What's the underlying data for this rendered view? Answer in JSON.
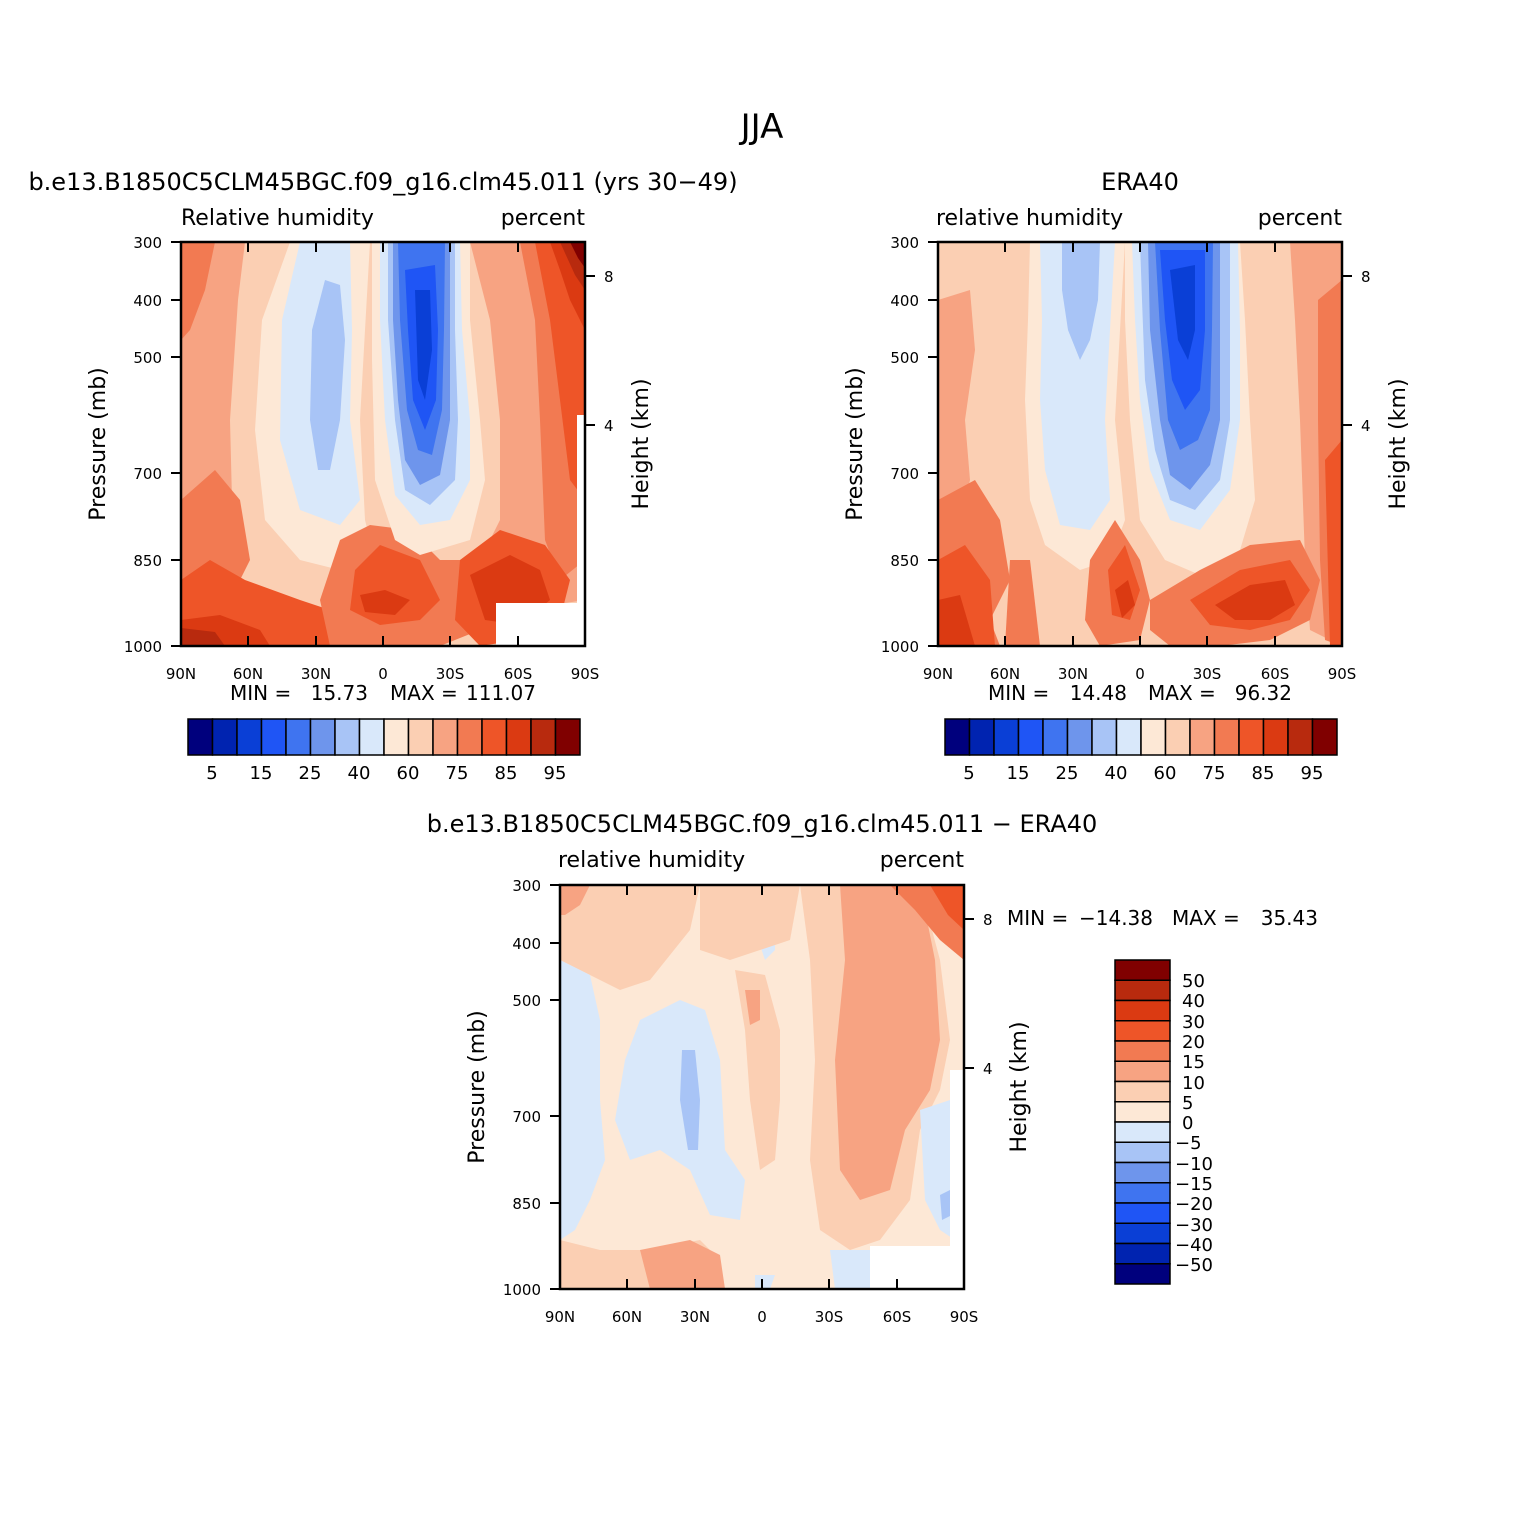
{
  "figure": {
    "title": "JJA"
  },
  "colors": {
    "rh_palette": [
      "#00007d",
      "#0023b0",
      "#0a3fd6",
      "#1f55f5",
      "#3f74f0",
      "#6e95ec",
      "#a8c4f6",
      "#d9e8fa",
      "#fde8d6",
      "#fbcfb3",
      "#f7a382",
      "#f27a52",
      "#ee5528",
      "#db3a12",
      "#b82a0e",
      "#800000"
    ],
    "diff_palette": [
      "#00007d",
      "#0023b0",
      "#0a3fd6",
      "#1f55f5",
      "#3f74f0",
      "#6e95ec",
      "#a8c4f6",
      "#d9e8fa",
      "#fde8d6",
      "#fbcfb3",
      "#f7a382",
      "#f27a52",
      "#ee5528",
      "#db3a12",
      "#b82a0e",
      "#800000"
    ]
  },
  "panels": [
    {
      "id": "model",
      "title": "b.e13.B1850C5CLM45BGC.f09_g16.clm45.011 (yrs 30−49)",
      "left_label": "Relative humidity",
      "right_label": "percent",
      "min_label": "MIN =",
      "min_value": "15.73",
      "max_label": "MAX =",
      "max_value": "111.07",
      "ylabel": "Pressure (mb)",
      "y2label": "Height (km)"
    },
    {
      "id": "obs",
      "title": "ERA40",
      "left_label": "relative humidity",
      "right_label": "percent",
      "min_label": "MIN =",
      "min_value": "14.48",
      "max_label": "MAX =",
      "max_value": "96.32",
      "ylabel": "Pressure (mb)",
      "y2label": "Height (km)"
    },
    {
      "id": "diff",
      "title": "b.e13.B1850C5CLM45BGC.f09_g16.clm45.011 − ERA40",
      "left_label": "relative humidity",
      "right_label": "percent",
      "min_label": "MIN =",
      "min_value": "−14.38",
      "max_label": "MAX =",
      "max_value": "35.43",
      "ylabel": "Pressure (mb)",
      "y2label": "Height (km)"
    }
  ],
  "chart_data": [
    {
      "type": "heatmap",
      "name": "model relative humidity",
      "x_ticks": [
        "90N",
        "60N",
        "30N",
        "0",
        "30S",
        "60S",
        "90S"
      ],
      "x_values": [
        90,
        60,
        30,
        0,
        -30,
        -60,
        -90
      ],
      "y_ticks": [
        "300",
        "400",
        "500",
        "700",
        "850",
        "1000"
      ],
      "y_values": [
        300,
        400,
        500,
        700,
        850,
        1000
      ],
      "y_scale": "log",
      "ylim": [
        1000,
        300
      ],
      "y2_ticks": [
        "8",
        "4"
      ],
      "colorbar_labels": [
        "5",
        "15",
        "25",
        "40",
        "60",
        "75",
        "85",
        "95"
      ],
      "levels": [
        5,
        10,
        15,
        20,
        25,
        30,
        40,
        50,
        60,
        65,
        75,
        80,
        85,
        90,
        95
      ],
      "min": 15.73,
      "max": 111.07
    },
    {
      "type": "heatmap",
      "name": "ERA40 relative humidity",
      "x_ticks": [
        "90N",
        "60N",
        "30N",
        "0",
        "30S",
        "60S",
        "90S"
      ],
      "x_values": [
        90,
        60,
        30,
        0,
        -30,
        -60,
        -90
      ],
      "y_ticks": [
        "300",
        "400",
        "500",
        "700",
        "850",
        "1000"
      ],
      "y_values": [
        300,
        400,
        500,
        700,
        850,
        1000
      ],
      "y_scale": "log",
      "ylim": [
        1000,
        300
      ],
      "y2_ticks": [
        "8",
        "4"
      ],
      "colorbar_labels": [
        "5",
        "15",
        "25",
        "40",
        "60",
        "75",
        "85",
        "95"
      ],
      "levels": [
        5,
        10,
        15,
        20,
        25,
        30,
        40,
        50,
        60,
        65,
        75,
        80,
        85,
        90,
        95
      ],
      "min": 14.48,
      "max": 96.32
    },
    {
      "type": "heatmap",
      "name": "difference",
      "x_ticks": [
        "90N",
        "60N",
        "30N",
        "0",
        "30S",
        "60S",
        "90S"
      ],
      "x_values": [
        90,
        60,
        30,
        0,
        -30,
        -60,
        -90
      ],
      "y_ticks": [
        "300",
        "400",
        "500",
        "700",
        "850",
        "1000"
      ],
      "y_values": [
        300,
        400,
        500,
        700,
        850,
        1000
      ],
      "y_scale": "log",
      "ylim": [
        1000,
        300
      ],
      "y2_ticks": [
        "8",
        "4"
      ],
      "colorbar_labels": [
        "50",
        "40",
        "30",
        "20",
        "15",
        "10",
        "5",
        "0",
        "−5",
        "−10",
        "−15",
        "−20",
        "−30",
        "−40",
        "−50"
      ],
      "levels": [
        50,
        40,
        30,
        20,
        15,
        10,
        5,
        0,
        -5,
        -10,
        -15,
        -20,
        -30,
        -40,
        -50
      ],
      "min": -14.38,
      "max": 35.43
    }
  ]
}
